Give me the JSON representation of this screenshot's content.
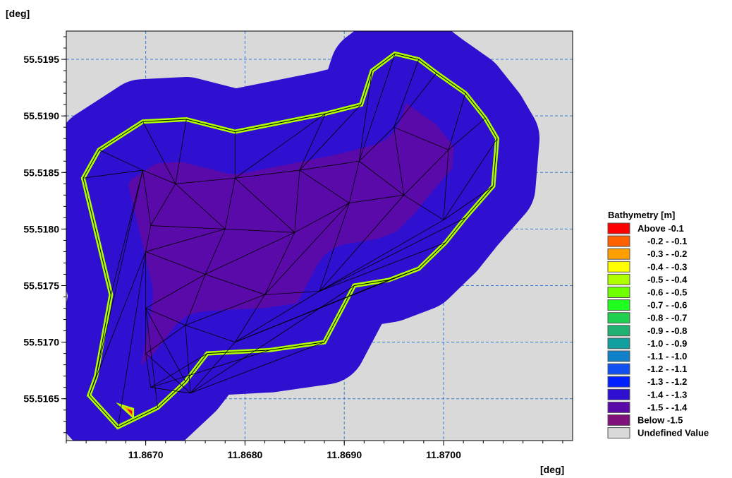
{
  "chart_data": {
    "type": "heatmap",
    "x_unit_label": "[deg]",
    "y_unit_label": "[deg]",
    "xlim": [
      11.8662,
      11.8713
    ],
    "ylim": [
      55.51613,
      55.51975
    ],
    "x_ticks": [
      "11.8670",
      "11.8680",
      "11.8690",
      "11.8700"
    ],
    "x_tick_values": [
      11.867,
      11.868,
      11.869,
      11.87
    ],
    "y_ticks": [
      "55.5165",
      "55.5170",
      "55.5175",
      "55.5180",
      "55.5185",
      "55.5190",
      "55.5195"
    ],
    "y_tick_values": [
      55.5165,
      55.517,
      55.5175,
      55.518,
      55.5185,
      55.519,
      55.5195
    ],
    "grid": true,
    "background_color": "#d9d9d9",
    "legend": {
      "title": "Bathymetry [m]",
      "placement": "right",
      "entries": [
        {
          "label": "Above -0.1",
          "color": "#ff0000"
        },
        {
          "label": "-0.2 - -0.1",
          "color": "#ff6000"
        },
        {
          "label": "-0.3 - -0.2",
          "color": "#ffa000"
        },
        {
          "label": "-0.4 - -0.3",
          "color": "#ffff00"
        },
        {
          "label": "-0.5 - -0.4",
          "color": "#b0ff00"
        },
        {
          "label": "-0.6 - -0.5",
          "color": "#70ff00"
        },
        {
          "label": "-0.7 - -0.6",
          "color": "#20ff20"
        },
        {
          "label": "-0.8 - -0.7",
          "color": "#20d050"
        },
        {
          "label": "-0.9 - -0.8",
          "color": "#20b070"
        },
        {
          "label": "-1.0 - -0.9",
          "color": "#10a0a0"
        },
        {
          "label": "-1.1 - -1.0",
          "color": "#1080c8"
        },
        {
          "label": "-1.2 - -1.1",
          "color": "#1050f0"
        },
        {
          "label": "-1.3 - -1.2",
          "color": "#0020ff"
        },
        {
          "label": "-1.4 - -1.3",
          "color": "#3010d0"
        },
        {
          "label": "-1.5 - -1.4",
          "color": "#5a0aa8"
        },
        {
          "label": "Below -1.5",
          "color": "#80107a"
        },
        {
          "label": "Undefined Value",
          "color": "#d9d9d9"
        }
      ]
    },
    "domain_boundary": [
      [
        11.86637,
        55.51845
      ],
      [
        11.86653,
        55.5187
      ],
      [
        11.86697,
        55.51895
      ],
      [
        11.86741,
        55.51897
      ],
      [
        11.8679,
        55.51886
      ],
      [
        11.86881,
        55.51902
      ],
      [
        11.86917,
        55.5191
      ],
      [
        11.86928,
        55.5194
      ],
      [
        11.86951,
        55.51955
      ],
      [
        11.86975,
        55.5195
      ],
      [
        11.86993,
        55.51938
      ],
      [
        11.87022,
        55.5192
      ],
      [
        11.87042,
        55.51898
      ],
      [
        11.87054,
        55.5188
      ],
      [
        11.8705,
        55.51838
      ],
      [
        11.87022,
        55.5181
      ],
      [
        11.87002,
        55.51788
      ],
      [
        11.86975,
        55.51765
      ],
      [
        11.86945,
        55.51755
      ],
      [
        11.8691,
        55.5175
      ],
      [
        11.8688,
        55.517
      ],
      [
        11.86825,
        55.51693
      ],
      [
        11.86762,
        55.5169
      ],
      [
        11.8674,
        55.51665
      ],
      [
        11.86712,
        55.51642
      ],
      [
        11.86672,
        55.51625
      ],
      [
        11.86643,
        55.51653
      ],
      [
        11.8665,
        55.5167
      ],
      [
        11.86665,
        55.51742
      ],
      [
        11.86637,
        55.51845
      ]
    ],
    "depth_field": "deep core near -1.5 m, shoaling to about -0.5 m at the domain boundary, local shallow spot near (11.8668, 55.5164)",
    "mesh": "triangular"
  }
}
